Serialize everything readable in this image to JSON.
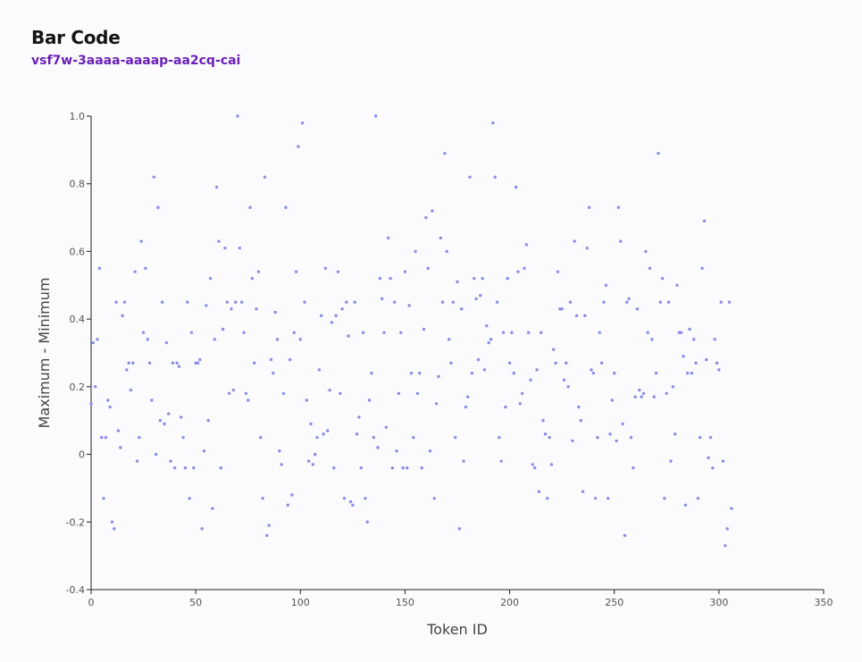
{
  "header": {
    "title": "Bar Code",
    "subtitle": "vsf7w-3aaaa-aaaap-aa2cq-cai"
  },
  "colors": {
    "point": "#8b8be8",
    "axis": "#222222",
    "background": "#fbfbfe",
    "subtitle": "#6a1fb8"
  },
  "chart_data": {
    "type": "scatter",
    "xlabel": "Token ID",
    "ylabel": "Maximum - Minimum",
    "xlim": [
      0,
      350
    ],
    "ylim": [
      -0.4,
      1.0
    ],
    "x_ticks": [
      0,
      50,
      100,
      150,
      200,
      250,
      300,
      350
    ],
    "y_ticks": [
      -0.4,
      -0.2,
      0,
      0.2,
      0.4,
      0.6,
      0.8,
      1.0
    ],
    "x_tick_labels": [
      "0",
      "50",
      "100",
      "150",
      "200",
      "250",
      "300",
      "350"
    ],
    "y_tick_labels": [
      "-0.4",
      "-0.2",
      "0",
      "0.2",
      "0.4",
      "0.6",
      "0.8",
      "1.0"
    ],
    "grid": false,
    "series": [
      {
        "points": [
          [
            0,
            0.15
          ],
          [
            1,
            0.33
          ],
          [
            2,
            0.2
          ],
          [
            3,
            0.34
          ],
          [
            4,
            0.55
          ],
          [
            5,
            0.05
          ],
          [
            6,
            -0.13
          ],
          [
            7,
            0.05
          ],
          [
            8,
            0.16
          ],
          [
            9,
            0.14
          ],
          [
            10,
            -0.2
          ],
          [
            11,
            -0.22
          ],
          [
            12,
            0.45
          ],
          [
            13,
            0.07
          ],
          [
            14,
            0.02
          ],
          [
            15,
            0.41
          ],
          [
            16,
            0.45
          ],
          [
            17,
            0.25
          ],
          [
            18,
            0.27
          ],
          [
            19,
            0.19
          ],
          [
            20,
            0.27
          ],
          [
            21,
            0.54
          ],
          [
            22,
            -0.02
          ],
          [
            23,
            0.05
          ],
          [
            24,
            0.63
          ],
          [
            25,
            0.36
          ],
          [
            26,
            0.55
          ],
          [
            27,
            0.34
          ],
          [
            28,
            0.27
          ],
          [
            29,
            0.16
          ],
          [
            30,
            0.82
          ],
          [
            31,
            0.0
          ],
          [
            32,
            0.73
          ],
          [
            33,
            0.1
          ],
          [
            34,
            0.45
          ],
          [
            35,
            0.09
          ],
          [
            36,
            0.33
          ],
          [
            37,
            0.12
          ],
          [
            38,
            -0.02
          ],
          [
            39,
            0.27
          ],
          [
            40,
            -0.04
          ],
          [
            41,
            0.27
          ],
          [
            42,
            0.26
          ],
          [
            43,
            0.11
          ],
          [
            44,
            0.05
          ],
          [
            45,
            -0.04
          ],
          [
            46,
            0.45
          ],
          [
            47,
            -0.13
          ],
          [
            48,
            0.36
          ],
          [
            49,
            -0.04
          ],
          [
            50,
            0.27
          ],
          [
            51,
            0.27
          ],
          [
            52,
            0.28
          ],
          [
            53,
            -0.22
          ],
          [
            54,
            0.01
          ],
          [
            55,
            0.44
          ],
          [
            56,
            0.1
          ],
          [
            57,
            0.52
          ],
          [
            58,
            -0.16
          ],
          [
            59,
            0.34
          ],
          [
            60,
            0.79
          ],
          [
            61,
            0.63
          ],
          [
            62,
            -0.04
          ],
          [
            63,
            0.37
          ],
          [
            64,
            0.61
          ],
          [
            65,
            0.45
          ],
          [
            66,
            0.18
          ],
          [
            67,
            0.43
          ],
          [
            68,
            0.19
          ],
          [
            69,
            0.45
          ],
          [
            70,
            1.0
          ],
          [
            71,
            0.61
          ],
          [
            72,
            0.45
          ],
          [
            73,
            0.36
          ],
          [
            74,
            0.18
          ],
          [
            75,
            0.16
          ],
          [
            76,
            0.73
          ],
          [
            77,
            0.52
          ],
          [
            78,
            0.27
          ],
          [
            79,
            0.43
          ],
          [
            80,
            0.54
          ],
          [
            81,
            0.05
          ],
          [
            82,
            -0.13
          ],
          [
            83,
            0.82
          ],
          [
            84,
            -0.24
          ],
          [
            85,
            -0.21
          ],
          [
            86,
            0.28
          ],
          [
            87,
            0.24
          ],
          [
            88,
            0.42
          ],
          [
            89,
            0.34
          ],
          [
            90,
            0.01
          ],
          [
            91,
            -0.03
          ],
          [
            92,
            0.18
          ],
          [
            93,
            0.73
          ],
          [
            94,
            -0.15
          ],
          [
            95,
            0.28
          ],
          [
            96,
            -0.12
          ],
          [
            97,
            0.36
          ],
          [
            98,
            0.54
          ],
          [
            99,
            0.91
          ],
          [
            100,
            0.34
          ],
          [
            101,
            0.98
          ],
          [
            102,
            0.45
          ],
          [
            103,
            0.16
          ],
          [
            104,
            -0.02
          ],
          [
            105,
            0.09
          ],
          [
            106,
            -0.03
          ],
          [
            107,
            0.0
          ],
          [
            108,
            0.05
          ],
          [
            109,
            0.25
          ],
          [
            110,
            0.41
          ],
          [
            111,
            0.06
          ],
          [
            112,
            0.55
          ],
          [
            113,
            0.07
          ],
          [
            114,
            0.19
          ],
          [
            115,
            0.39
          ],
          [
            116,
            -0.04
          ],
          [
            117,
            0.41
          ],
          [
            118,
            0.54
          ],
          [
            119,
            0.18
          ],
          [
            120,
            0.43
          ],
          [
            121,
            -0.13
          ],
          [
            122,
            0.45
          ],
          [
            123,
            0.35
          ],
          [
            124,
            -0.14
          ],
          [
            125,
            -0.15
          ],
          [
            126,
            0.45
          ],
          [
            127,
            0.06
          ],
          [
            128,
            0.11
          ],
          [
            129,
            -0.04
          ],
          [
            130,
            0.36
          ],
          [
            131,
            -0.13
          ],
          [
            132,
            -0.2
          ],
          [
            133,
            0.16
          ],
          [
            134,
            0.24
          ],
          [
            135,
            0.05
          ],
          [
            136,
            1.0
          ],
          [
            137,
            0.02
          ],
          [
            138,
            0.52
          ],
          [
            139,
            0.46
          ],
          [
            140,
            0.36
          ],
          [
            141,
            0.08
          ],
          [
            142,
            0.64
          ],
          [
            143,
            0.52
          ],
          [
            144,
            -0.04
          ],
          [
            145,
            0.45
          ],
          [
            146,
            0.01
          ],
          [
            147,
            0.18
          ],
          [
            148,
            0.36
          ],
          [
            149,
            -0.04
          ],
          [
            150,
            0.54
          ],
          [
            151,
            -0.04
          ],
          [
            152,
            0.44
          ],
          [
            153,
            0.24
          ],
          [
            154,
            0.05
          ],
          [
            155,
            0.6
          ],
          [
            156,
            0.18
          ],
          [
            157,
            0.24
          ],
          [
            158,
            -0.04
          ],
          [
            159,
            0.37
          ],
          [
            160,
            0.7
          ],
          [
            161,
            0.55
          ],
          [
            162,
            0.01
          ],
          [
            163,
            0.72
          ],
          [
            164,
            -0.13
          ],
          [
            165,
            0.15
          ],
          [
            166,
            0.23
          ],
          [
            167,
            0.64
          ],
          [
            168,
            0.45
          ],
          [
            169,
            0.89
          ],
          [
            170,
            0.6
          ],
          [
            171,
            0.34
          ],
          [
            172,
            0.27
          ],
          [
            173,
            0.45
          ],
          [
            174,
            0.05
          ],
          [
            175,
            0.51
          ],
          [
            176,
            -0.22
          ],
          [
            177,
            0.43
          ],
          [
            178,
            -0.02
          ],
          [
            179,
            0.14
          ],
          [
            180,
            0.17
          ],
          [
            181,
            0.82
          ],
          [
            182,
            0.24
          ],
          [
            183,
            0.52
          ],
          [
            184,
            0.46
          ],
          [
            185,
            0.28
          ],
          [
            186,
            0.47
          ],
          [
            187,
            0.52
          ],
          [
            188,
            0.25
          ],
          [
            189,
            0.38
          ],
          [
            190,
            0.33
          ],
          [
            191,
            0.34
          ],
          [
            192,
            0.98
          ],
          [
            193,
            0.82
          ],
          [
            194,
            0.45
          ],
          [
            195,
            0.05
          ],
          [
            196,
            -0.02
          ],
          [
            197,
            0.36
          ],
          [
            198,
            0.14
          ],
          [
            199,
            0.52
          ],
          [
            200,
            0.27
          ],
          [
            201,
            0.36
          ],
          [
            202,
            0.24
          ],
          [
            203,
            0.79
          ],
          [
            204,
            0.54
          ],
          [
            205,
            0.15
          ],
          [
            206,
            0.18
          ],
          [
            207,
            0.55
          ],
          [
            208,
            0.62
          ],
          [
            209,
            0.36
          ],
          [
            210,
            0.22
          ],
          [
            211,
            -0.03
          ],
          [
            212,
            -0.04
          ],
          [
            213,
            0.25
          ],
          [
            214,
            -0.11
          ],
          [
            215,
            0.36
          ],
          [
            216,
            0.1
          ],
          [
            217,
            0.06
          ],
          [
            218,
            -0.13
          ],
          [
            219,
            0.05
          ],
          [
            220,
            -0.03
          ],
          [
            221,
            0.31
          ],
          [
            222,
            0.27
          ],
          [
            223,
            0.54
          ],
          [
            224,
            0.43
          ],
          [
            225,
            0.43
          ],
          [
            226,
            0.22
          ],
          [
            227,
            0.27
          ],
          [
            228,
            0.2
          ],
          [
            229,
            0.45
          ],
          [
            230,
            0.04
          ],
          [
            231,
            0.63
          ],
          [
            232,
            0.41
          ],
          [
            233,
            0.14
          ],
          [
            234,
            0.1
          ],
          [
            235,
            -0.11
          ],
          [
            236,
            0.41
          ],
          [
            237,
            0.61
          ],
          [
            238,
            0.73
          ],
          [
            239,
            0.25
          ],
          [
            240,
            0.24
          ],
          [
            241,
            -0.13
          ],
          [
            242,
            0.05
          ],
          [
            243,
            0.36
          ],
          [
            244,
            0.27
          ],
          [
            245,
            0.45
          ],
          [
            246,
            0.5
          ],
          [
            247,
            -0.13
          ],
          [
            248,
            0.06
          ],
          [
            249,
            0.16
          ],
          [
            250,
            0.24
          ],
          [
            251,
            0.04
          ],
          [
            252,
            0.73
          ],
          [
            253,
            0.63
          ],
          [
            254,
            0.09
          ],
          [
            255,
            -0.24
          ],
          [
            256,
            0.45
          ],
          [
            257,
            0.46
          ],
          [
            258,
            0.05
          ],
          [
            259,
            -0.04
          ],
          [
            260,
            0.17
          ],
          [
            261,
            0.43
          ],
          [
            262,
            0.19
          ],
          [
            263,
            0.17
          ],
          [
            264,
            0.18
          ],
          [
            265,
            0.6
          ],
          [
            266,
            0.36
          ],
          [
            267,
            0.55
          ],
          [
            268,
            0.34
          ],
          [
            269,
            0.17
          ],
          [
            270,
            0.24
          ],
          [
            271,
            0.89
          ],
          [
            272,
            0.45
          ],
          [
            273,
            0.52
          ],
          [
            274,
            -0.13
          ],
          [
            275,
            0.18
          ],
          [
            276,
            0.45
          ],
          [
            277,
            -0.02
          ],
          [
            278,
            0.2
          ],
          [
            279,
            0.06
          ],
          [
            280,
            0.5
          ],
          [
            281,
            0.36
          ],
          [
            282,
            0.36
          ],
          [
            283,
            0.29
          ],
          [
            284,
            -0.15
          ],
          [
            285,
            0.24
          ],
          [
            286,
            0.37
          ],
          [
            287,
            0.24
          ],
          [
            288,
            0.34
          ],
          [
            289,
            0.27
          ],
          [
            290,
            -0.13
          ],
          [
            291,
            0.05
          ],
          [
            292,
            0.55
          ],
          [
            293,
            0.69
          ],
          [
            294,
            0.28
          ],
          [
            295,
            -0.01
          ],
          [
            296,
            0.05
          ],
          [
            297,
            -0.04
          ],
          [
            298,
            0.34
          ],
          [
            299,
            0.27
          ],
          [
            300,
            0.25
          ],
          [
            301,
            0.45
          ],
          [
            302,
            -0.02
          ],
          [
            303,
            -0.27
          ],
          [
            304,
            -0.22
          ],
          [
            305,
            0.45
          ],
          [
            306,
            -0.16
          ]
        ]
      }
    ]
  }
}
